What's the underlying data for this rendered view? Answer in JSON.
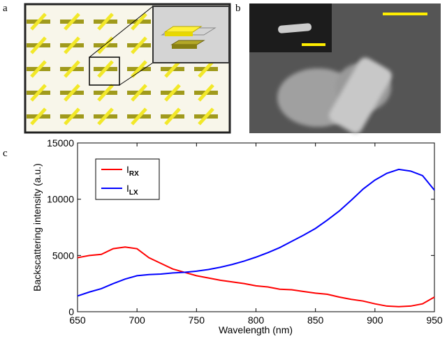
{
  "panel_labels": [
    "a",
    "b",
    "c"
  ],
  "chart_data": {
    "type": "line",
    "x_label": "Wavelength (nm)",
    "y_label": "Backscattering intensity (a.u.)",
    "x": [
      650,
      660,
      670,
      680,
      690,
      700,
      710,
      720,
      730,
      740,
      750,
      760,
      770,
      780,
      790,
      800,
      810,
      820,
      830,
      840,
      850,
      860,
      870,
      880,
      890,
      900,
      910,
      920,
      930,
      940,
      950
    ],
    "series": [
      {
        "name": "I",
        "subscript": "RX",
        "color": "#ff0000",
        "values": [
          4800,
          5000,
          5100,
          5600,
          5750,
          5600,
          4800,
          4300,
          3800,
          3500,
          3200,
          3000,
          2800,
          2650,
          2500,
          2300,
          2200,
          2000,
          1950,
          1800,
          1650,
          1550,
          1300,
          1100,
          950,
          700,
          500,
          450,
          500,
          700,
          1300
        ]
      },
      {
        "name": "I",
        "subscript": "LX",
        "color": "#0000ff",
        "values": [
          1400,
          1750,
          2050,
          2500,
          2900,
          3200,
          3300,
          3350,
          3450,
          3500,
          3600,
          3750,
          3950,
          4200,
          4500,
          4850,
          5250,
          5700,
          6250,
          6800,
          7400,
          8150,
          8950,
          9900,
          10900,
          11700,
          12300,
          12650,
          12500,
          12100,
          10800
        ]
      }
    ],
    "xlim": [
      650,
      950
    ],
    "xticks": [
      650,
      700,
      750,
      800,
      850,
      900,
      950
    ],
    "ylim": [
      0,
      15000
    ],
    "yticks": [
      0,
      5000,
      10000,
      15000
    ],
    "legend": "upper left"
  }
}
